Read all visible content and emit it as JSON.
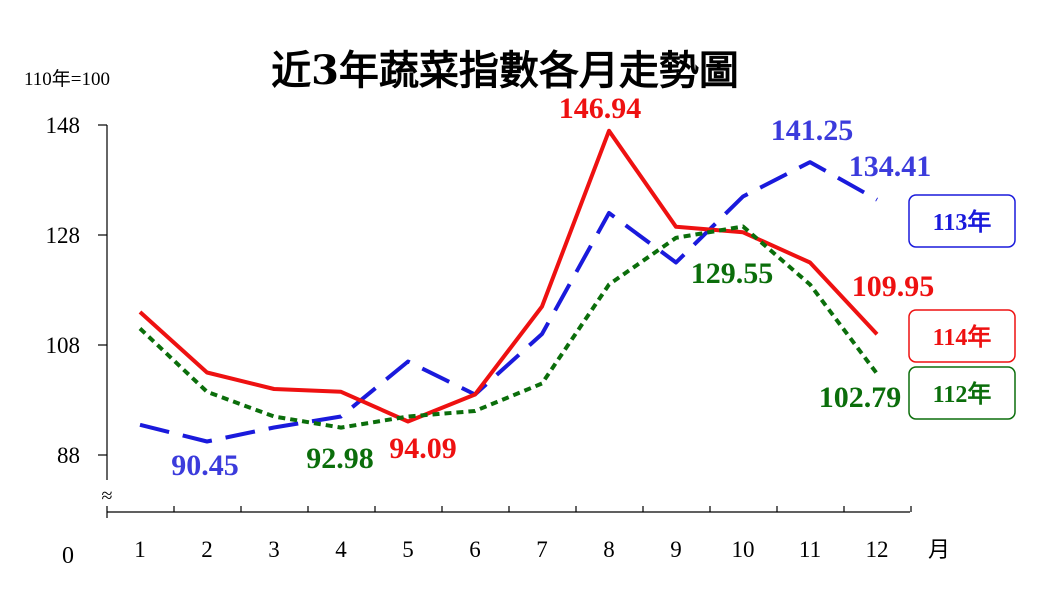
{
  "chart_data": {
    "type": "line",
    "title": "近3年蔬菜指數各月走勢圖",
    "ylabel": "110年=100",
    "xlabel": "月",
    "axis_break_symbol": "≈",
    "y_origin_label": "0",
    "ylim": [
      82,
      148
    ],
    "yticks": [
      88,
      108,
      128,
      148
    ],
    "categories": [
      "1",
      "2",
      "3",
      "4",
      "5",
      "6",
      "7",
      "8",
      "9",
      "10",
      "11",
      "12"
    ],
    "grid": false,
    "legend_position": "right",
    "series": [
      {
        "name": "113年",
        "color": "#1a1adc",
        "label_color": "#3b3bdc",
        "style": "long-dash",
        "values": [
          93.5,
          90.45,
          93.0,
          95.0,
          105.0,
          99.0,
          110.0,
          132.0,
          123.0,
          135.0,
          141.25,
          134.41
        ]
      },
      {
        "name": "114年",
        "color": "#ee1111",
        "label_color": "#ee1111",
        "style": "solid",
        "values": [
          114.0,
          103.0,
          100.0,
          99.5,
          94.09,
          99.0,
          115.0,
          146.94,
          129.5,
          128.5,
          123.0,
          109.95
        ]
      },
      {
        "name": "112年",
        "color": "#0b6e0b",
        "label_color": "#0b6e0b",
        "style": "dotted",
        "values": [
          111.0,
          99.5,
          95.0,
          92.98,
          95.0,
          96.0,
          101.0,
          119.0,
          127.5,
          129.55,
          119.0,
          102.79
        ]
      }
    ],
    "annotations": [
      {
        "text": "146.94",
        "series": "114年"
      },
      {
        "text": "141.25",
        "series": "113年"
      },
      {
        "text": "134.41",
        "series": "113年"
      },
      {
        "text": "109.95",
        "series": "114年"
      },
      {
        "text": "129.55",
        "series": "112年"
      },
      {
        "text": "102.79",
        "series": "112年"
      },
      {
        "text": "90.45",
        "series": "113年"
      },
      {
        "text": "92.98",
        "series": "112年"
      },
      {
        "text": "94.09",
        "series": "114年"
      }
    ]
  }
}
